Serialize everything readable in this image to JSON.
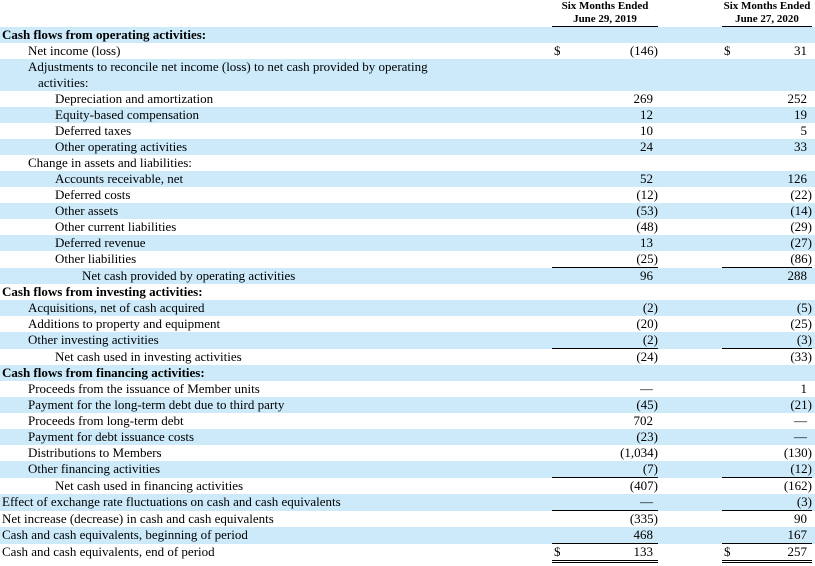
{
  "table": {
    "currency_symbol": "$",
    "colors": {
      "shaded_row": "#CCEAFA",
      "text": "#000000",
      "rule": "#000000"
    },
    "columns": [
      {
        "line1": "Six Months Ended",
        "line2": "June 29, 2019"
      },
      {
        "line1": "Six Months Ended",
        "line2": "June 27, 2020"
      }
    ],
    "rows": [
      {
        "label": "Cash flows from operating activities:",
        "indent": 0,
        "bold": true,
        "shaded": true,
        "v1": "",
        "v2": ""
      },
      {
        "label": "Net income (loss)",
        "indent": 1,
        "bold": false,
        "shaded": false,
        "dollar": true,
        "v1": "(146)",
        "v2": "31"
      },
      {
        "label": "Adjustments to reconcile net income (loss) to net cash provided by operating\nactivities:",
        "indent": 1,
        "bold": false,
        "shaded": true,
        "v1": "",
        "v2": ""
      },
      {
        "label": "Depreciation and amortization",
        "indent": 2,
        "bold": false,
        "shaded": false,
        "v1": "269",
        "v2": "252"
      },
      {
        "label": "Equity-based compensation",
        "indent": 2,
        "bold": false,
        "shaded": true,
        "v1": "12",
        "v2": "19"
      },
      {
        "label": "Deferred taxes",
        "indent": 2,
        "bold": false,
        "shaded": false,
        "v1": "10",
        "v2": "5"
      },
      {
        "label": "Other operating activities",
        "indent": 2,
        "bold": false,
        "shaded": true,
        "v1": "24",
        "v2": "33"
      },
      {
        "label": "Change in assets and liabilities:",
        "indent": 1,
        "bold": false,
        "shaded": false,
        "v1": "",
        "v2": ""
      },
      {
        "label": "Accounts receivable, net",
        "indent": 2,
        "bold": false,
        "shaded": true,
        "v1": "52",
        "v2": "126"
      },
      {
        "label": "Deferred costs",
        "indent": 2,
        "bold": false,
        "shaded": false,
        "v1": "(12)",
        "v2": "(22)"
      },
      {
        "label": "Other assets",
        "indent": 2,
        "bold": false,
        "shaded": true,
        "v1": "(53)",
        "v2": "(14)"
      },
      {
        "label": "Other current liabilities",
        "indent": 2,
        "bold": false,
        "shaded": false,
        "v1": "(48)",
        "v2": "(29)"
      },
      {
        "label": "Deferred revenue",
        "indent": 2,
        "bold": false,
        "shaded": true,
        "v1": "13",
        "v2": "(27)"
      },
      {
        "label": "Other liabilities",
        "indent": 2,
        "bold": false,
        "shaded": false,
        "rule": "single",
        "v1": "(25)",
        "v2": "(86)"
      },
      {
        "label": "Net cash provided by operating activities",
        "indent": 3,
        "bold": false,
        "shaded": true,
        "v1": "96",
        "v2": "288"
      },
      {
        "label": "Cash flows from investing activities:",
        "indent": 0,
        "bold": true,
        "shaded": false,
        "v1": "",
        "v2": ""
      },
      {
        "label": "Acquisitions, net of cash acquired",
        "indent": 1,
        "bold": false,
        "shaded": true,
        "v1": "(2)",
        "v2": "(5)"
      },
      {
        "label": "Additions to property and equipment",
        "indent": 1,
        "bold": false,
        "shaded": false,
        "v1": "(20)",
        "v2": "(25)"
      },
      {
        "label": "Other investing activities",
        "indent": 1,
        "bold": false,
        "shaded": true,
        "rule": "single",
        "v1": "(2)",
        "v2": "(3)"
      },
      {
        "label": "Net cash used in investing activities",
        "indent": 2,
        "bold": false,
        "shaded": false,
        "v1": "(24)",
        "v2": "(33)"
      },
      {
        "label": "Cash flows from financing activities:",
        "indent": 0,
        "bold": true,
        "shaded": true,
        "v1": "",
        "v2": ""
      },
      {
        "label": "Proceeds from the issuance of Member units",
        "indent": 1,
        "bold": false,
        "shaded": false,
        "v1": "—",
        "v2": "1"
      },
      {
        "label": "Payment for the long-term debt due to third party",
        "indent": 1,
        "bold": false,
        "shaded": true,
        "v1": "(45)",
        "v2": "(21)"
      },
      {
        "label": "Proceeds from long-term debt",
        "indent": 1,
        "bold": false,
        "shaded": false,
        "v1": "702",
        "v2": "—"
      },
      {
        "label": "Payment for debt issuance costs",
        "indent": 1,
        "bold": false,
        "shaded": true,
        "v1": "(23)",
        "v2": "—"
      },
      {
        "label": "Distributions to Members",
        "indent": 1,
        "bold": false,
        "shaded": false,
        "v1": "(1,034)",
        "v2": "(130)"
      },
      {
        "label": "Other financing activities",
        "indent": 1,
        "bold": false,
        "shaded": true,
        "rule": "single",
        "v1": "(7)",
        "v2": "(12)"
      },
      {
        "label": "Net cash used in financing activities",
        "indent": 2,
        "bold": false,
        "shaded": false,
        "v1": "(407)",
        "v2": "(162)"
      },
      {
        "label": "Effect of exchange rate fluctuations on cash and cash equivalents",
        "indent": 0,
        "bold": false,
        "shaded": true,
        "rule": "single",
        "v1": "—",
        "v2": "(3)"
      },
      {
        "label": "Net increase (decrease) in cash and cash equivalents",
        "indent": 0,
        "bold": false,
        "shaded": false,
        "v1": "(335)",
        "v2": "90"
      },
      {
        "label": "Cash and cash equivalents, beginning of period",
        "indent": 0,
        "bold": false,
        "shaded": true,
        "rule": "single",
        "v1": "468",
        "v2": "167"
      },
      {
        "label": "Cash and cash equivalents, end of period",
        "indent": 0,
        "bold": false,
        "shaded": false,
        "dollar": true,
        "rule": "double",
        "v1": "133",
        "v2": "257"
      }
    ]
  }
}
